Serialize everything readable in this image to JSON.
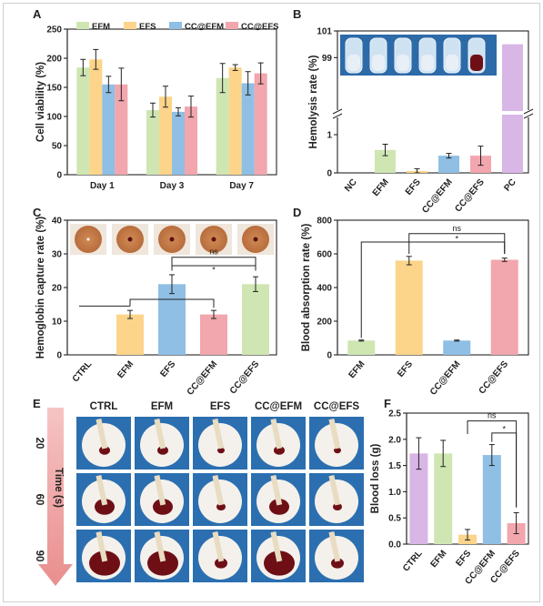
{
  "colors": {
    "green": "#cfe6b3",
    "orange": "#fcd48a",
    "blue": "#8fbfe4",
    "pink": "#f2a6ad",
    "purple": "#d8b6e6",
    "red_photo": "#6e0f16",
    "blue_photo": "#2b6fb0"
  },
  "chart_data": [
    {
      "panel": "A",
      "type": "bar",
      "categories": [
        "Day 1",
        "Day 3",
        "Day 7"
      ],
      "series": [
        {
          "name": "EFM",
          "values": [
            184,
            111,
            166
          ],
          "errors": [
            14,
            12,
            25
          ]
        },
        {
          "name": "EFS",
          "values": [
            198,
            134,
            184
          ],
          "errors": [
            17,
            18,
            5
          ]
        },
        {
          "name": "CC@EFM",
          "values": [
            155,
            108,
            157
          ],
          "errors": [
            14,
            7,
            20
          ]
        },
        {
          "name": "CC@EFS",
          "values": [
            155,
            117,
            174
          ],
          "errors": [
            28,
            18,
            18
          ]
        }
      ],
      "ylabel": "Cell viability (%)",
      "ylim": [
        0,
        250
      ],
      "yticks": [
        "0",
        "50",
        "100",
        "150",
        "200",
        "250"
      ]
    },
    {
      "panel": "B",
      "type": "bar",
      "categories": [
        "NC",
        "EFM",
        "EFS",
        "CC@EFM",
        "CC@EFS",
        "PC"
      ],
      "values": [
        0,
        0.6,
        0.05,
        0.45,
        0.45,
        100
      ],
      "errors": [
        0,
        0.15,
        0.06,
        0.06,
        0.25,
        0
      ],
      "ylabel": "Hemolysis rate (%)",
      "axis_break": [
        1.5,
        95
      ],
      "yticks": [
        "0",
        "1",
        "99",
        "101"
      ],
      "note": "inset: tube photographs"
    },
    {
      "panel": "C",
      "type": "bar",
      "categories": [
        "CTRL",
        "EFM",
        "EFS",
        "CC@EFM",
        "CC@EFS"
      ],
      "values": [
        0,
        12,
        21,
        12,
        21
      ],
      "errors": [
        0,
        1.2,
        2.8,
        1.2,
        2.2
      ],
      "ylabel": "Hemoglobin capture rate (%)",
      "ylim": [
        0,
        40
      ],
      "yticks": [
        "0",
        "10",
        "20",
        "30",
        "40"
      ],
      "annotations": [
        "ns",
        "*"
      ]
    },
    {
      "panel": "D",
      "type": "bar",
      "categories": [
        "EFM",
        "EFS",
        "CC@EFM",
        "CC@EFS"
      ],
      "values": [
        85,
        560,
        85,
        565
      ],
      "errors": [
        3,
        25,
        3,
        10
      ],
      "ylabel": "Blood absorption rate (%)",
      "ylim": [
        0,
        800
      ],
      "yticks": [
        "0",
        "200",
        "400",
        "600",
        "800"
      ],
      "annotations": [
        "ns",
        "*"
      ]
    },
    {
      "panel": "F",
      "type": "bar",
      "categories": [
        "CTRL",
        "EFM",
        "EFS",
        "CC@EFM",
        "CC@EFS"
      ],
      "values": [
        1.73,
        1.73,
        0.18,
        1.7,
        0.4
      ],
      "errors": [
        0.3,
        0.25,
        0.1,
        0.2,
        0.2
      ],
      "ylabel": "Blood loss (g)",
      "ylim": [
        0,
        2.5
      ],
      "yticks": [
        "0.0",
        "0.5",
        "1.0",
        "1.5",
        "2.0",
        "2.5"
      ],
      "annotations": [
        "ns",
        "*"
      ]
    }
  ],
  "panel_e": {
    "letter": "E",
    "columns": [
      "CTRL",
      "EFM",
      "EFS",
      "CC@EFM",
      "CC@EFS"
    ],
    "rows": [
      "20",
      "60",
      "90"
    ],
    "time_label": "Time (s)"
  },
  "panel_letters": {
    "a": "A",
    "b": "B",
    "c": "C",
    "d": "D",
    "f": "F"
  }
}
